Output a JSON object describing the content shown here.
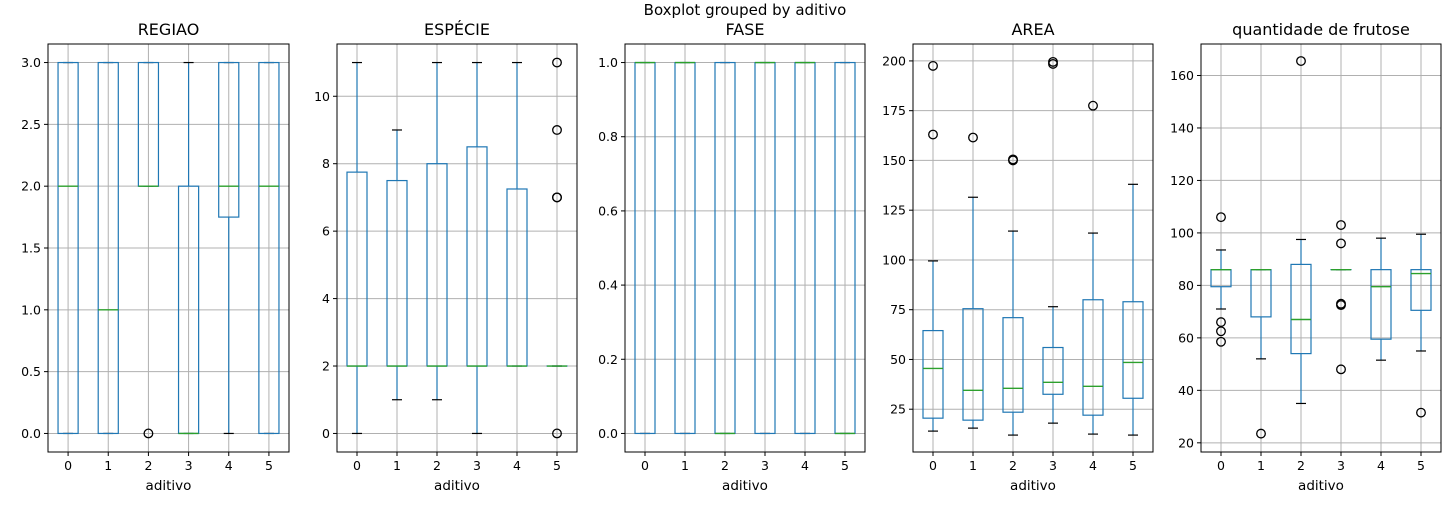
{
  "figure": {
    "suptitle": "Boxplot grouped by aditivo"
  },
  "colors": {
    "box": "#1f77b4",
    "median": "#2ca02c",
    "whisker": "#1f77b4",
    "cap": "#000000",
    "flier": "#000000",
    "grid": "#b0b0b0"
  },
  "chart_data": [
    {
      "type": "box",
      "title": "REGIAO",
      "xlabel": "aditivo",
      "categories": [
        "0",
        "1",
        "2",
        "3",
        "4",
        "5"
      ],
      "ylim": [
        -0.15,
        3.15
      ],
      "yticks": [
        0.0,
        0.5,
        1.0,
        1.5,
        2.0,
        2.5,
        3.0
      ],
      "yticklabels": [
        "0.0",
        "0.5",
        "1.0",
        "1.5",
        "2.0",
        "2.5",
        "3.0"
      ],
      "grid": true,
      "boxes": [
        {
          "q1": 0,
          "median": 2,
          "q3": 3,
          "whislo": 0,
          "whishi": 3,
          "fliers": []
        },
        {
          "q1": 0,
          "median": 1,
          "q3": 3,
          "whislo": 0,
          "whishi": 3,
          "fliers": []
        },
        {
          "q1": 2,
          "median": 2,
          "q3": 3,
          "whislo": 2,
          "whishi": 3,
          "fliers": [
            0
          ]
        },
        {
          "q1": 0,
          "median": 0,
          "q3": 2,
          "whislo": 0,
          "whishi": 3,
          "fliers": []
        },
        {
          "q1": 1.75,
          "median": 2,
          "q3": 3,
          "whislo": 0,
          "whishi": 3,
          "fliers": []
        },
        {
          "q1": 0,
          "median": 2,
          "q3": 3,
          "whislo": 0,
          "whishi": 3,
          "fliers": []
        }
      ]
    },
    {
      "type": "box",
      "title": "ESPÉCIE",
      "xlabel": "aditivo",
      "categories": [
        "0",
        "1",
        "2",
        "3",
        "4",
        "5"
      ],
      "ylim": [
        -0.55,
        11.55
      ],
      "yticks": [
        0,
        2,
        4,
        6,
        8,
        10
      ],
      "yticklabels": [
        "0",
        "2",
        "4",
        "6",
        "8",
        "10"
      ],
      "grid": true,
      "boxes": [
        {
          "q1": 2,
          "median": 2,
          "q3": 7.75,
          "whislo": 0,
          "whishi": 11,
          "fliers": []
        },
        {
          "q1": 2,
          "median": 2,
          "q3": 7.5,
          "whislo": 1,
          "whishi": 9,
          "fliers": []
        },
        {
          "q1": 2,
          "median": 2,
          "q3": 8,
          "whislo": 1,
          "whishi": 11,
          "fliers": []
        },
        {
          "q1": 2,
          "median": 2,
          "q3": 8.5,
          "whislo": 0,
          "whishi": 11,
          "fliers": []
        },
        {
          "q1": 2,
          "median": 2,
          "q3": 7.25,
          "whislo": 2,
          "whishi": 11,
          "fliers": []
        },
        {
          "q1": 2,
          "median": 2,
          "q3": 2,
          "whislo": 2,
          "whishi": 2,
          "fliers": [
            11,
            9,
            7,
            7,
            0
          ]
        }
      ]
    },
    {
      "type": "box",
      "title": "FASE",
      "xlabel": "aditivo",
      "categories": [
        "0",
        "1",
        "2",
        "3",
        "4",
        "5"
      ],
      "ylim": [
        -0.05,
        1.05
      ],
      "yticks": [
        0.0,
        0.2,
        0.4,
        0.6,
        0.8,
        1.0
      ],
      "yticklabels": [
        "0.0",
        "0.2",
        "0.4",
        "0.6",
        "0.8",
        "1.0"
      ],
      "grid": true,
      "boxes": [
        {
          "q1": 0,
          "median": 1,
          "q3": 1,
          "whislo": 0,
          "whishi": 1,
          "fliers": []
        },
        {
          "q1": 0,
          "median": 1,
          "q3": 1,
          "whislo": 0,
          "whishi": 1,
          "fliers": []
        },
        {
          "q1": 0,
          "median": 0,
          "q3": 1,
          "whislo": 0,
          "whishi": 1,
          "fliers": []
        },
        {
          "q1": 0,
          "median": 1,
          "q3": 1,
          "whislo": 0,
          "whishi": 1,
          "fliers": []
        },
        {
          "q1": 0,
          "median": 1,
          "q3": 1,
          "whislo": 0,
          "whishi": 1,
          "fliers": []
        },
        {
          "q1": 0,
          "median": 0,
          "q3": 1,
          "whislo": 0,
          "whishi": 1,
          "fliers": []
        }
      ]
    },
    {
      "type": "box",
      "title": "AREA",
      "xlabel": "aditivo",
      "categories": [
        "0",
        "1",
        "2",
        "3",
        "4",
        "5"
      ],
      "ylim": [
        3.5,
        208.5
      ],
      "yticks": [
        25,
        50,
        75,
        100,
        125,
        150,
        175,
        200
      ],
      "yticklabels": [
        "25",
        "50",
        "75",
        "100",
        "125",
        "150",
        "175",
        "200"
      ],
      "grid": true,
      "boxes": [
        {
          "q1": 20.5,
          "median": 45.5,
          "q3": 64.5,
          "whislo": 14,
          "whishi": 99.5,
          "fliers": [
            197.5,
            163
          ]
        },
        {
          "q1": 19.5,
          "median": 34.5,
          "q3": 75.5,
          "whislo": 15.5,
          "whishi": 131.5,
          "fliers": [
            161.5
          ]
        },
        {
          "q1": 23.5,
          "median": 35.5,
          "q3": 71,
          "whislo": 12,
          "whishi": 114.5,
          "fliers": [
            150.5,
            150
          ]
        },
        {
          "q1": 32.5,
          "median": 38.5,
          "q3": 56,
          "whislo": 18,
          "whishi": 76.5,
          "fliers": [
            199.5,
            198.5
          ]
        },
        {
          "q1": 22,
          "median": 36.5,
          "q3": 80,
          "whislo": 12.5,
          "whishi": 113.5,
          "fliers": [
            177.5
          ]
        },
        {
          "q1": 30.5,
          "median": 48.5,
          "q3": 79,
          "whislo": 12,
          "whishi": 138,
          "fliers": []
        }
      ]
    },
    {
      "type": "box",
      "title": "quantidade de frutose",
      "xlabel": "aditivo",
      "categories": [
        "0",
        "1",
        "2",
        "3",
        "4",
        "5"
      ],
      "ylim": [
        16.5,
        172
      ],
      "yticks": [
        20,
        40,
        60,
        80,
        100,
        120,
        140,
        160
      ],
      "yticklabels": [
        "20",
        "40",
        "60",
        "80",
        "100",
        "120",
        "140",
        "160"
      ],
      "grid": true,
      "boxes": [
        {
          "q1": 79.5,
          "median": 86,
          "q3": 86,
          "whislo": 71,
          "whishi": 93.5,
          "fliers": [
            106,
            66,
            62.5,
            58.5
          ]
        },
        {
          "q1": 68,
          "median": 86,
          "q3": 86,
          "whislo": 52,
          "whishi": 86,
          "fliers": [
            23.5
          ]
        },
        {
          "q1": 54,
          "median": 67,
          "q3": 88,
          "whislo": 35,
          "whishi": 97.5,
          "fliers": [
            165.5
          ]
        },
        {
          "q1": 86,
          "median": 86,
          "q3": 86,
          "whislo": 86,
          "whishi": 86,
          "fliers": [
            103,
            96,
            73,
            72.5,
            48
          ]
        },
        {
          "q1": 59.5,
          "median": 79.5,
          "q3": 86,
          "whislo": 51.5,
          "whishi": 98,
          "fliers": []
        },
        {
          "q1": 70.5,
          "median": 84.5,
          "q3": 86,
          "whislo": 55,
          "whishi": 99.5,
          "fliers": [
            31.5
          ]
        }
      ]
    }
  ]
}
